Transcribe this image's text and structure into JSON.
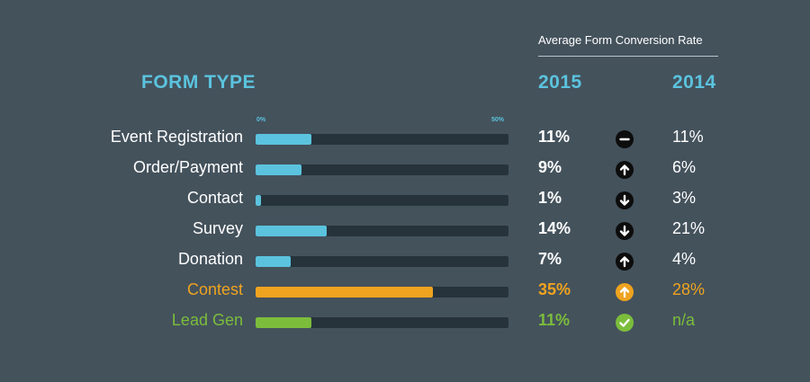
{
  "header": {
    "rate_title": "Average Form Conversion Rate",
    "form_type": "FORM TYPE",
    "year_current": "2015",
    "year_previous": "2014"
  },
  "axis": {
    "min_label": "0%",
    "max_label": "50%"
  },
  "colors": {
    "accent": "#5bc3de",
    "contest": "#efa31f",
    "leadgen": "#7cbd3c",
    "track": "#26333b"
  },
  "chart_data": {
    "type": "bar",
    "orientation": "horizontal",
    "title": "Average Form Conversion Rate",
    "xlim": [
      0,
      50
    ],
    "categories": [
      "Event Registration",
      "Order/Payment",
      "Contact",
      "Survey",
      "Donation",
      "Contest",
      "Lead Gen"
    ],
    "series": [
      {
        "name": "2015",
        "values": [
          11,
          9,
          1,
          14,
          7,
          35,
          11
        ]
      },
      {
        "name": "2014",
        "values": [
          11,
          6,
          3,
          21,
          4,
          28,
          null
        ]
      }
    ]
  },
  "rows": [
    {
      "label": "Event Registration",
      "value": 11,
      "v2015": "11%",
      "v2014": "11%",
      "trend": "neutral",
      "icon": "minus-icon",
      "color": "#ffffff",
      "bar": "#5bc3de",
      "badge": "#0d0d0d",
      "glyph": "#ffffff"
    },
    {
      "label": "Order/Payment",
      "value": 9,
      "v2015": "9%",
      "v2014": "6%",
      "trend": "up",
      "icon": "arrow-up-icon",
      "color": "#ffffff",
      "bar": "#5bc3de",
      "badge": "#0d0d0d",
      "glyph": "#ffffff"
    },
    {
      "label": "Contact",
      "value": 1,
      "v2015": "1%",
      "v2014": "3%",
      "trend": "down",
      "icon": "arrow-down-icon",
      "color": "#ffffff",
      "bar": "#5bc3de",
      "badge": "#0d0d0d",
      "glyph": "#ffffff"
    },
    {
      "label": "Survey",
      "value": 14,
      "v2015": "14%",
      "v2014": "21%",
      "trend": "down",
      "icon": "arrow-down-icon",
      "color": "#ffffff",
      "bar": "#5bc3de",
      "badge": "#0d0d0d",
      "glyph": "#ffffff"
    },
    {
      "label": "Donation",
      "value": 7,
      "v2015": "7%",
      "v2014": "4%",
      "trend": "up",
      "icon": "arrow-up-icon",
      "color": "#ffffff",
      "bar": "#5bc3de",
      "badge": "#0d0d0d",
      "glyph": "#ffffff"
    },
    {
      "label": "Contest",
      "value": 35,
      "v2015": "35%",
      "v2014": "28%",
      "trend": "up",
      "icon": "arrow-up-icon",
      "color": "#efa31f",
      "bar": "#efa31f",
      "badge": "#efa31f",
      "glyph": "#ffffff"
    },
    {
      "label": "Lead Gen",
      "value": 11,
      "v2015": "11%",
      "v2014": "n/a",
      "trend": "check",
      "icon": "check-icon",
      "color": "#7cbd3c",
      "bar": "#7cbd3c",
      "badge": "#7cbd3c",
      "glyph": "#ffffff"
    }
  ]
}
